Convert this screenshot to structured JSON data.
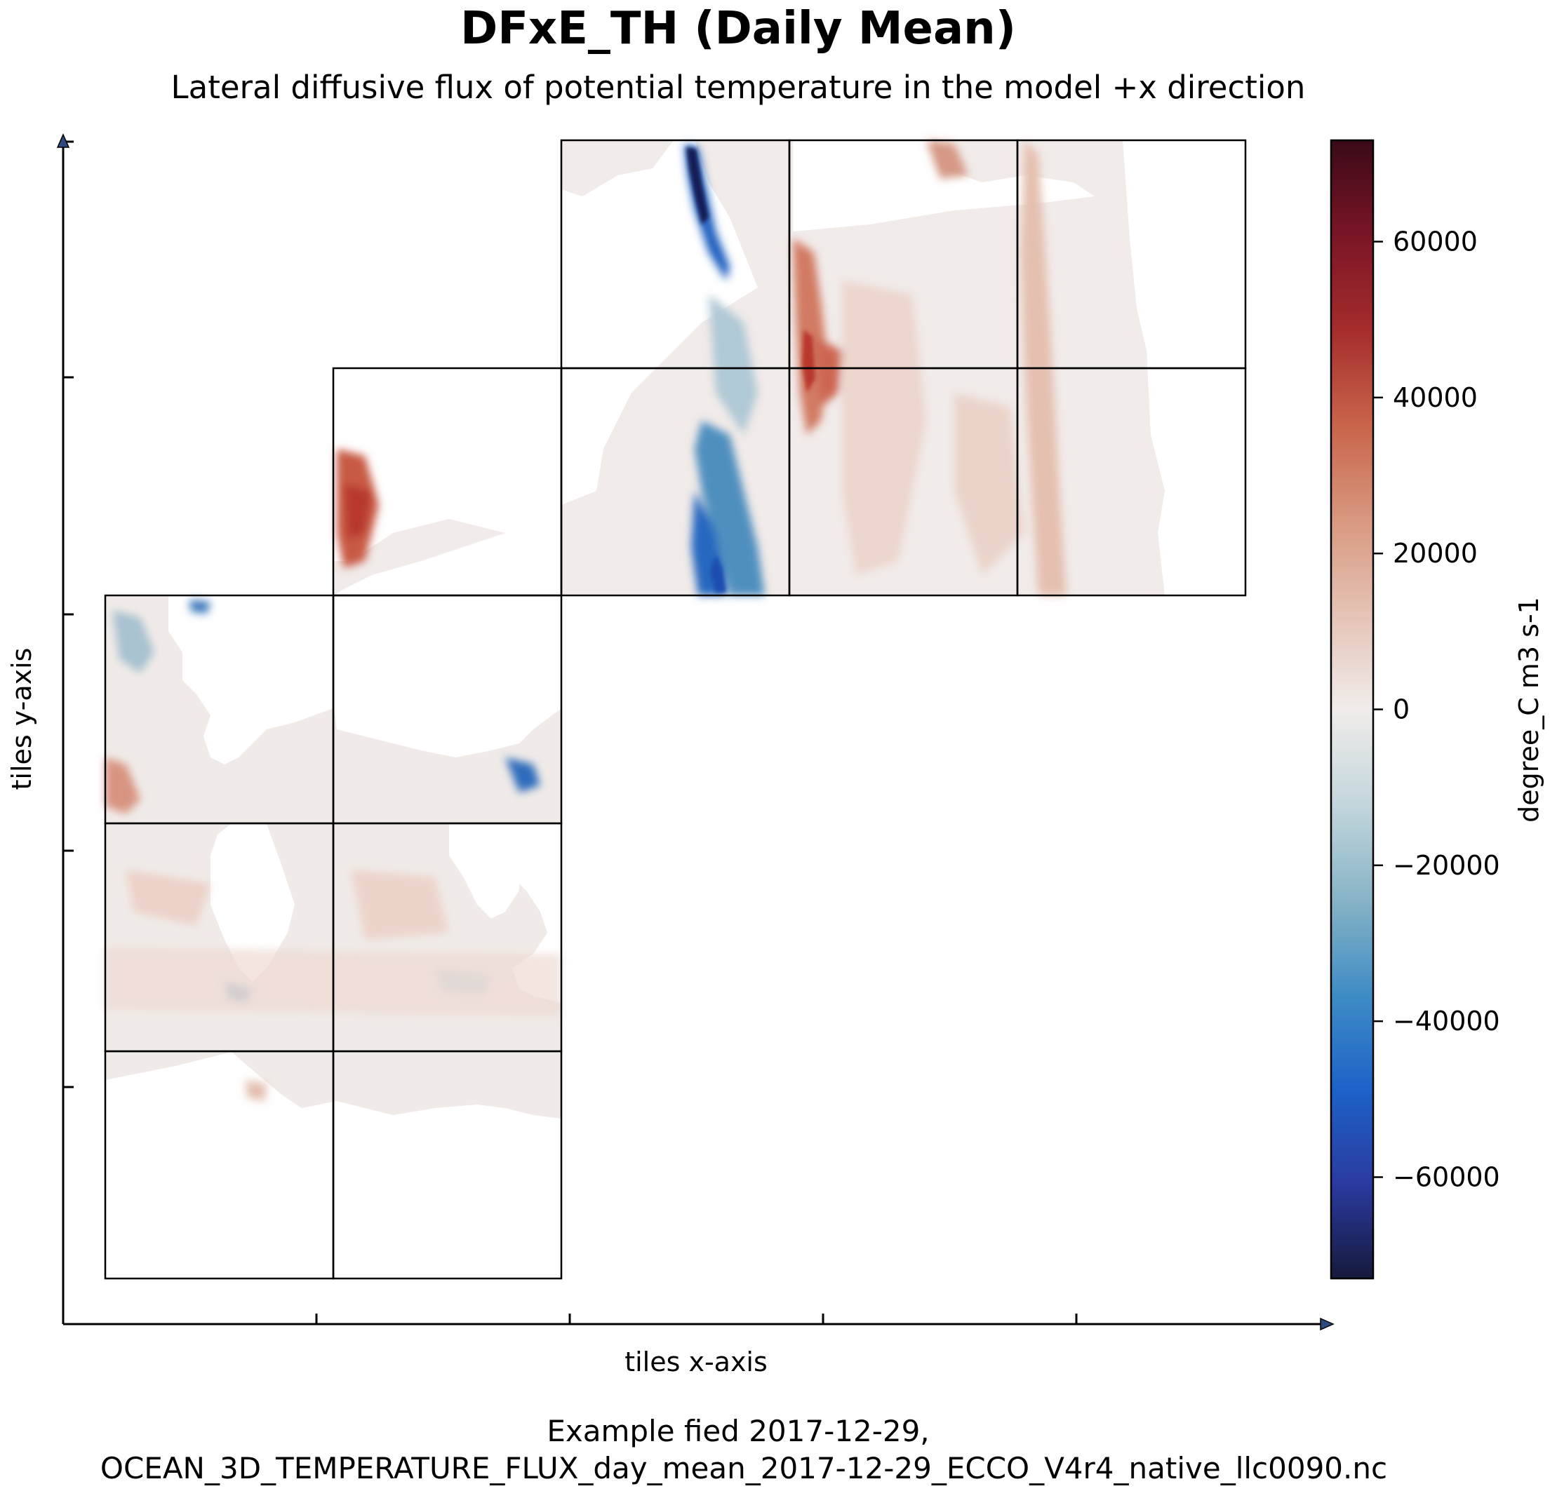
{
  "chart_data": {
    "type": "heatmap",
    "title": "DFxE_TH (Daily Mean)",
    "subtitle": "Lateral diffusive flux of potential temperature in the model +x direction",
    "xlabel": "tiles x-axis",
    "ylabel": "tiles y-axis",
    "colorbar": {
      "label": "degree_C m3 s-1",
      "range": [
        -73000,
        73000
      ],
      "ticks": [
        60000,
        40000,
        20000,
        0,
        -20000,
        -40000,
        -60000
      ],
      "tick_labels": [
        "60000",
        "40000",
        "20000",
        "0",
        "−20000",
        "−40000",
        "−60000"
      ],
      "colormap": "balance",
      "colors": [
        "#161a3b",
        "#2a3aa0",
        "#1d63c8",
        "#3f8dc4",
        "#88b4c6",
        "#c3d6dc",
        "#f0ecea",
        "#e4c3b5",
        "#d8987f",
        "#c8644a",
        "#a52c2c",
        "#7a1526",
        "#3a0a17"
      ]
    },
    "caption_line1": "Example fied 2017-12-29,",
    "caption_line2": "OCEAN_3D_TEMPERATURE_FLUX_day_mean_2017-12-29_ECCO_V4r4_native_llc0090.nc",
    "tile_layout": "llc90 native tiles arranged in a 5 x 5 grid",
    "grid": false
  }
}
